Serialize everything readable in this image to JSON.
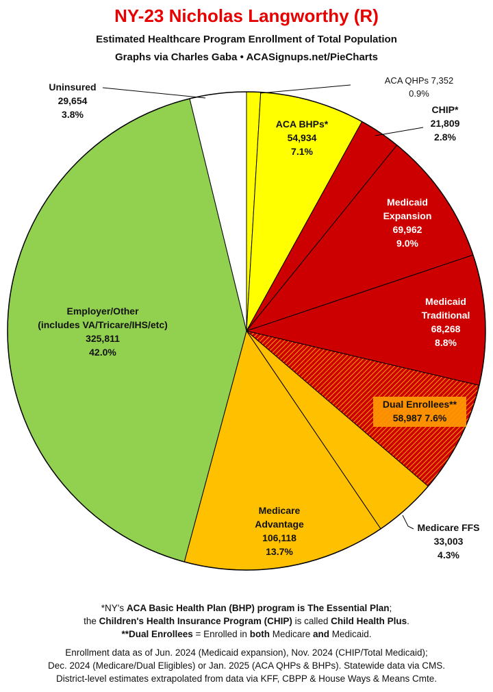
{
  "chart_data": {
    "type": "pie",
    "title": "NY-23 Nicholas Langworthy (R)",
    "subtitle_1": "Estimated Healthcare Program Enrollment of Total Population",
    "subtitle_2": "Graphs via Charles Gaba  •  ACASignups.net/PieCharts",
    "slices": [
      {
        "label": "ACA QHPs",
        "value": 7352,
        "display_value": "7,352",
        "percent": "0.9%",
        "color": "#ffff00",
        "hatch": false
      },
      {
        "label": "ACA BHPs*",
        "value": 54934,
        "display_value": "54,934",
        "percent": "7.1%",
        "color": "#ffff00",
        "hatch": false
      },
      {
        "label": "CHIP*",
        "value": 21809,
        "display_value": "21,809",
        "percent": "2.8%",
        "color": "#cc0000",
        "hatch": false
      },
      {
        "label": "Medicaid Expansion",
        "value": 69962,
        "display_value": "69,962",
        "percent": "9.0%",
        "color": "#cc0000",
        "hatch": false
      },
      {
        "label": "Medicaid Traditional",
        "value": 68268,
        "display_value": "68,268",
        "percent": "8.8%",
        "color": "#cc0000",
        "hatch": false
      },
      {
        "label": "Dual Enrollees**",
        "value": 58987,
        "display_value": "58,987",
        "percent": "7.6%",
        "color": "#cc0000",
        "hatch": true
      },
      {
        "label": "Medicare FFS",
        "value": 33003,
        "display_value": "33,003",
        "percent": "4.3%",
        "color": "#ffc000",
        "hatch": false
      },
      {
        "label": "Medicare Advantage",
        "value": 106118,
        "display_value": "106,118",
        "percent": "13.7%",
        "color": "#ffc000",
        "hatch": false
      },
      {
        "label": "Employer/Other",
        "sublabel": "(includes VA/Tricare/IHS/etc)",
        "value": 325811,
        "display_value": "325,811",
        "percent": "42.0%",
        "color": "#92d050",
        "hatch": false
      },
      {
        "label": "Uninsured",
        "value": 29654,
        "display_value": "29,654",
        "percent": "3.8%",
        "color": "#ffffff",
        "hatch": false
      }
    ],
    "legend": "none"
  },
  "footnotes": {
    "line1_pre": "*NY's ",
    "line1_bold": "ACA Basic Health Plan (BHP) program is The Essential Plan",
    "line1_post": ";",
    "line2_pre": "the ",
    "line2_bold1": "Children's Health Insurance Program (CHIP)",
    "line2_mid": " is called ",
    "line2_bold2": "Child Health Plus",
    "line2_post": ".",
    "line3_bold": "**Dual Enrollees",
    "line3_mid": " = Enrolled in ",
    "line3_bold2": "both",
    "line3_post": " Medicare ",
    "line3_bold3": "and",
    "line3_end": " Medicaid.",
    "data_line1": "Enrollment data as of Jun. 2024 (Medicaid expansion), Nov. 2024 (CHIP/Total Medicaid);",
    "data_line2": "Dec. 2024 (Medicare/Dual Eligibles) or Jan. 2025 (ACA QHPs & BHPs). Statewide data via CMS.",
    "data_line3": "District-level estimates extrapolated from data via KFF, CBPP & House Ways & Means Cmte."
  }
}
